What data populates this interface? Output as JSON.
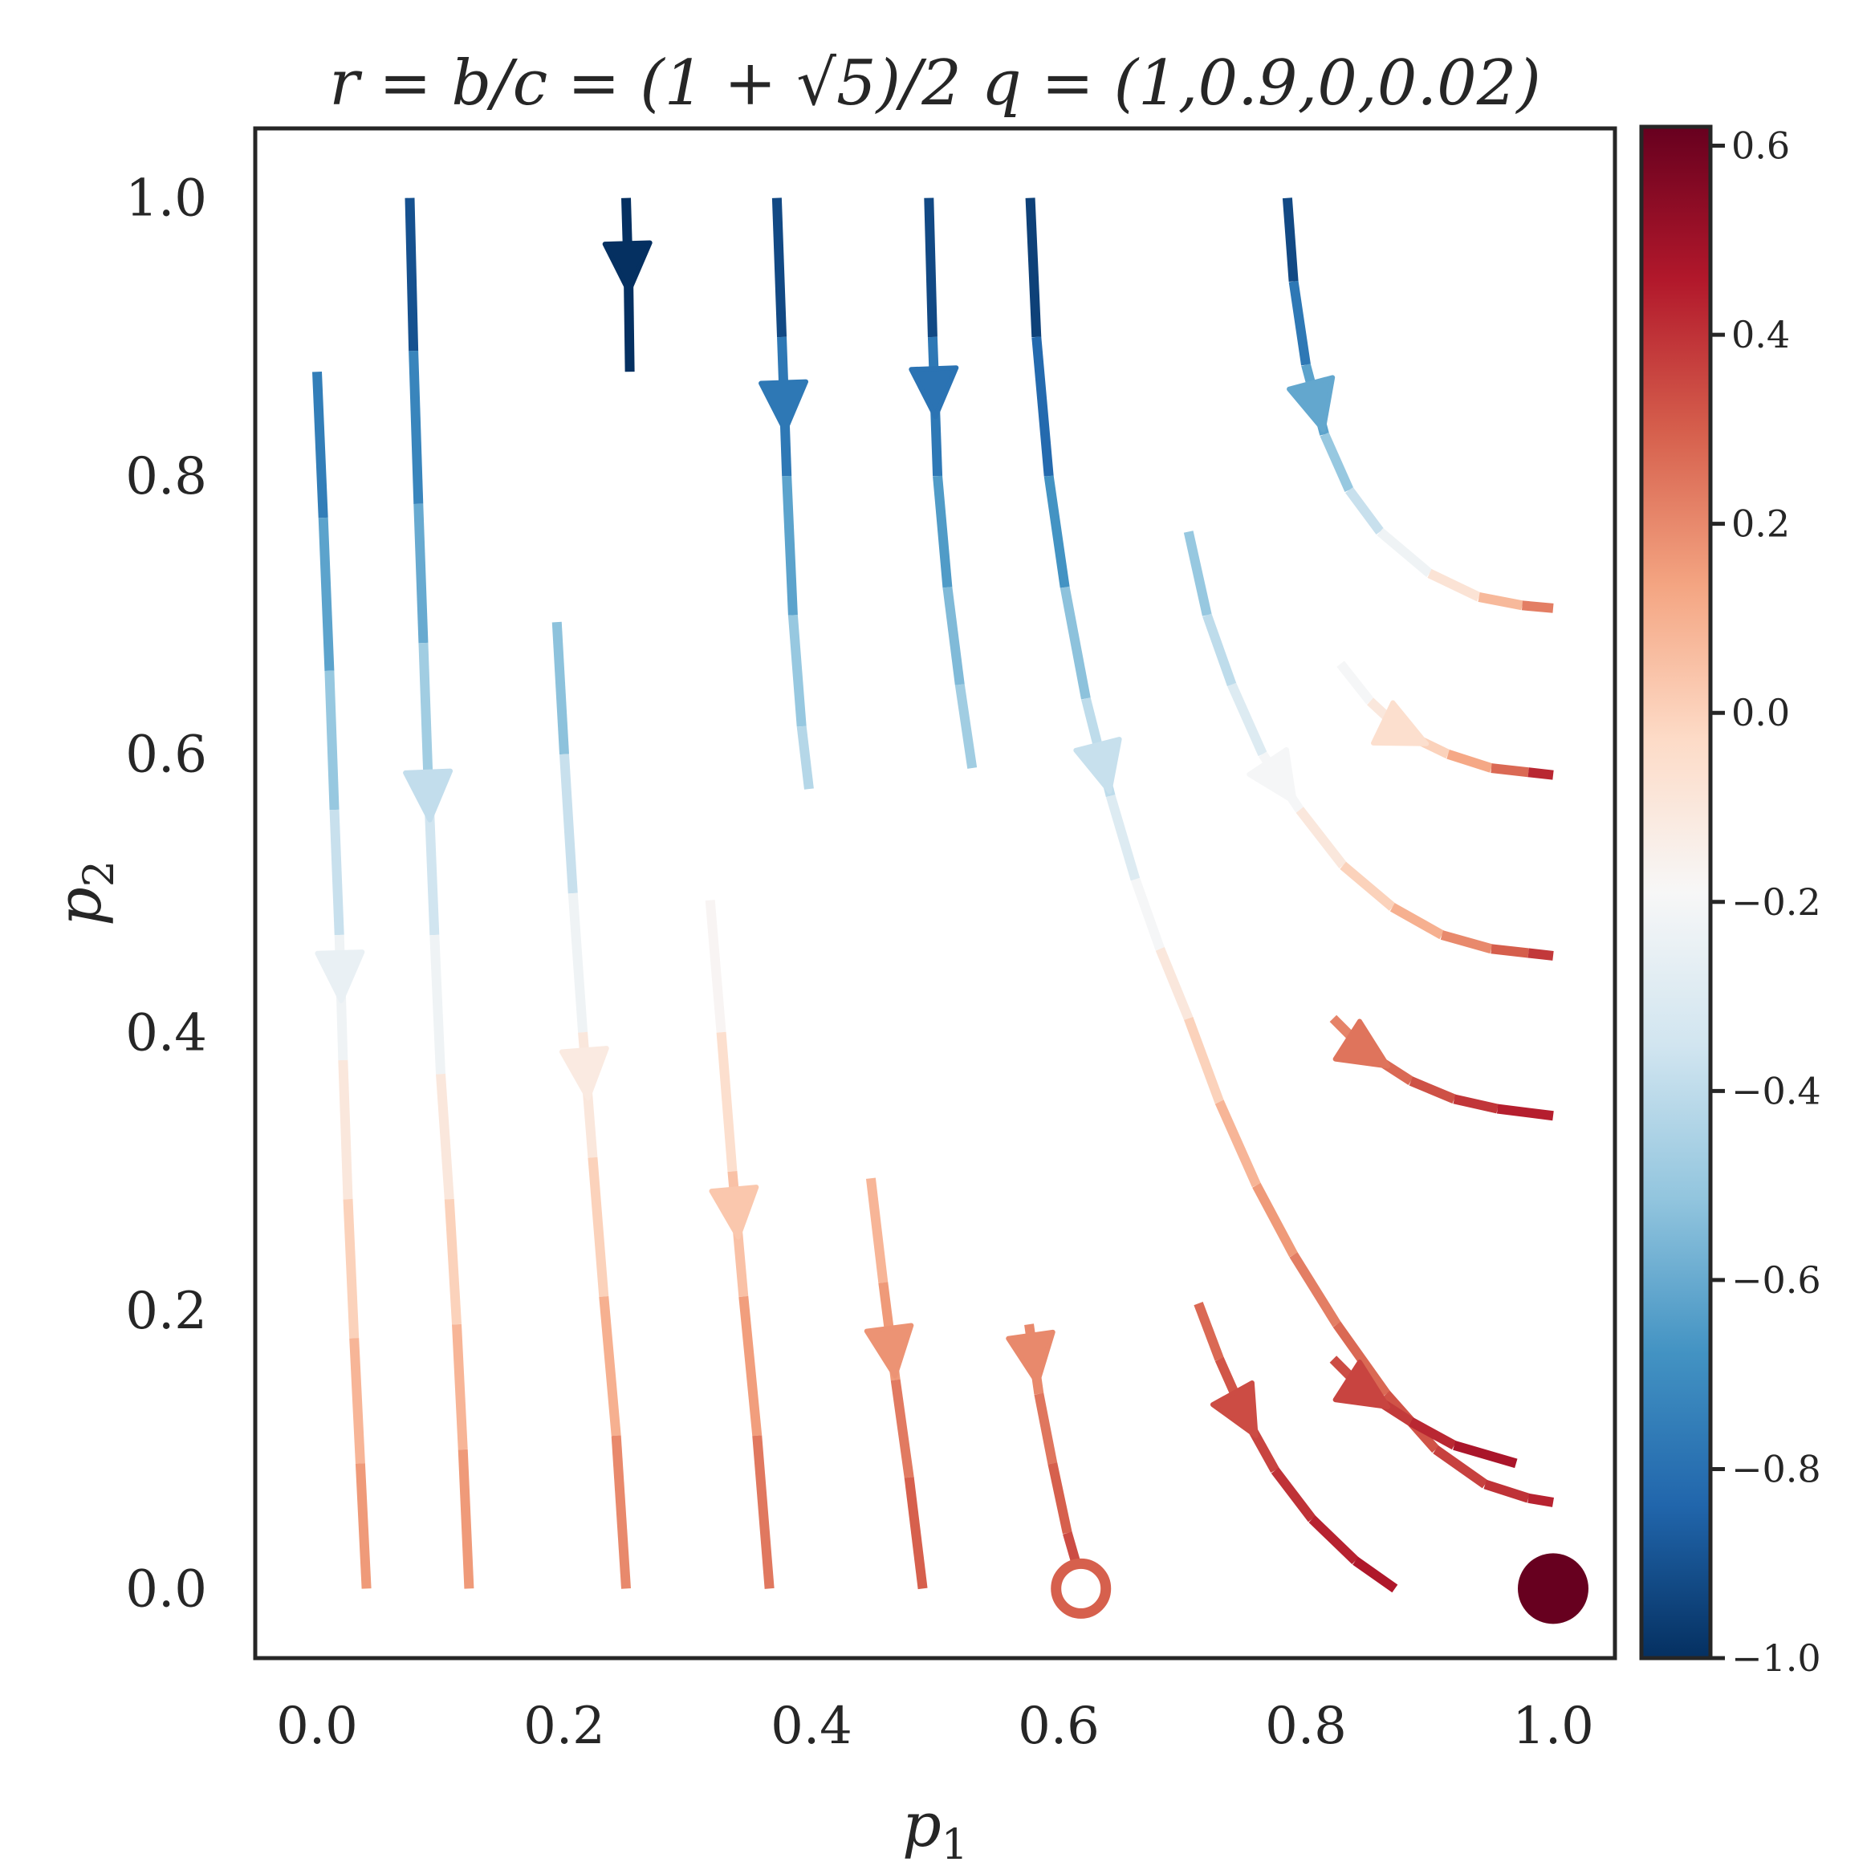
{
  "chart_data": {
    "type": "streamplot",
    "title": "r = b/c = (1 + √5)/2 q = (1,0.9,0,0.02)",
    "xlabel": "p",
    "xlabel_sub": "1",
    "ylabel": "p",
    "ylabel_sub": "2",
    "xlim": [
      -0.05,
      1.05
    ],
    "ylim": [
      -0.05,
      1.05
    ],
    "xticks": [
      "0.0",
      "0.2",
      "0.4",
      "0.6",
      "0.8",
      "1.0"
    ],
    "xtick_values": [
      0,
      0.2,
      0.4,
      0.6,
      0.8,
      1.0
    ],
    "yticks": [
      "0.0",
      "0.2",
      "0.4",
      "0.6",
      "0.8",
      "1.0"
    ],
    "ytick_values": [
      0,
      0.2,
      0.4,
      0.6,
      0.8,
      1.0
    ],
    "grid": false,
    "colormap": "RdBu_r",
    "colorbar": {
      "range": [
        -1.0,
        0.62
      ],
      "ticks": [
        "−1.0",
        "−0.8",
        "−0.6",
        "−0.4",
        "−0.2",
        "0.0",
        "0.2",
        "0.4",
        "0.6"
      ],
      "tick_values": [
        -1.0,
        -0.8,
        -0.6,
        -0.4,
        -0.2,
        0.0,
        0.2,
        0.4,
        0.6
      ],
      "colors": [
        "#053061",
        "#2166ac",
        "#4393c3",
        "#92c5de",
        "#d1e5f0",
        "#f7f7f7",
        "#fddbc7",
        "#f4a582",
        "#d6604d",
        "#b2182b",
        "#67001f"
      ]
    },
    "streamlines": [
      {
        "points": [
          [
            0.0,
            0.875
          ],
          [
            0.005,
            0.77
          ],
          [
            0.01,
            0.66
          ],
          [
            0.014,
            0.56
          ],
          [
            0.018,
            0.47
          ],
          [
            0.021,
            0.38
          ],
          [
            0.025,
            0.28
          ],
          [
            0.03,
            0.18
          ],
          [
            0.035,
            0.09
          ],
          [
            0.04,
            0.0
          ]
        ],
        "values": [
          -0.8,
          -0.7,
          -0.55,
          -0.45,
          -0.3,
          -0.15,
          -0.05,
          0.05,
          0.12,
          0.2
        ],
        "arrows": [
          0.44
        ]
      },
      {
        "points": [
          [
            0.075,
            1.0
          ],
          [
            0.078,
            0.89
          ],
          [
            0.082,
            0.78
          ],
          [
            0.086,
            0.68
          ],
          [
            0.09,
            0.58
          ],
          [
            0.095,
            0.47
          ],
          [
            0.1,
            0.37
          ],
          [
            0.107,
            0.28
          ],
          [
            0.113,
            0.19
          ],
          [
            0.118,
            0.1
          ],
          [
            0.123,
            0.0
          ]
        ],
        "values": [
          -1.0,
          -0.8,
          -0.65,
          -0.55,
          -0.4,
          -0.3,
          -0.15,
          -0.05,
          0.05,
          0.12,
          0.2
        ],
        "arrows": [
          0.57
        ]
      },
      {
        "points": [
          [
            0.194,
            0.695
          ],
          [
            0.2,
            0.6
          ],
          [
            0.207,
            0.5
          ],
          [
            0.215,
            0.4
          ],
          [
            0.223,
            0.31
          ],
          [
            0.232,
            0.21
          ],
          [
            0.242,
            0.11
          ],
          [
            0.25,
            0.0
          ]
        ],
        "values": [
          -0.6,
          -0.45,
          -0.3,
          -0.15,
          -0.05,
          0.05,
          0.15,
          0.25
        ],
        "arrows": [
          0.37
        ]
      },
      {
        "points": [
          [
            0.25,
            1.0
          ],
          [
            0.252,
            0.94
          ],
          [
            0.253,
            0.875
          ]
        ],
        "values": [
          -1.0,
          -1.0,
          -1.0
        ],
        "arrows": [
          0.95
        ]
      },
      {
        "points": [
          [
            0.318,
            0.495
          ],
          [
            0.327,
            0.4
          ],
          [
            0.336,
            0.3
          ],
          [
            0.345,
            0.21
          ],
          [
            0.356,
            0.11
          ],
          [
            0.366,
            0.0
          ]
        ],
        "values": [
          -0.25,
          -0.1,
          0.0,
          0.1,
          0.2,
          0.28
        ],
        "arrows": [
          0.27
        ]
      },
      {
        "points": [
          [
            0.372,
            1.0
          ],
          [
            0.376,
            0.9
          ],
          [
            0.38,
            0.8
          ],
          [
            0.385,
            0.7
          ],
          [
            0.392,
            0.62
          ],
          [
            0.398,
            0.575
          ]
        ],
        "values": [
          -1.0,
          -0.85,
          -0.7,
          -0.55,
          -0.45,
          -0.4
        ],
        "arrows": [
          0.85
        ]
      },
      {
        "points": [
          [
            0.448,
            0.295
          ],
          [
            0.458,
            0.22
          ],
          [
            0.468,
            0.15
          ],
          [
            0.479,
            0.08
          ],
          [
            0.49,
            0.0
          ]
        ],
        "values": [
          0.05,
          0.12,
          0.2,
          0.27,
          0.32
        ],
        "arrows": [
          0.17
        ]
      },
      {
        "points": [
          [
            0.495,
            1.0
          ],
          [
            0.498,
            0.9
          ],
          [
            0.502,
            0.8
          ],
          [
            0.51,
            0.72
          ],
          [
            0.52,
            0.65
          ],
          [
            0.53,
            0.59
          ]
        ],
        "values": [
          -1.0,
          -0.85,
          -0.7,
          -0.6,
          -0.5,
          -0.45
        ],
        "arrows": [
          0.86
        ]
      },
      {
        "points": [
          [
            0.576,
            0.19
          ],
          [
            0.584,
            0.14
          ],
          [
            0.595,
            0.09
          ],
          [
            0.607,
            0.04
          ],
          [
            0.62,
            0.0
          ]
        ],
        "values": [
          0.18,
          0.22,
          0.27,
          0.32,
          0.36
        ],
        "arrows": [
          0.165
        ]
      },
      {
        "points": [
          [
            0.577,
            1.0
          ],
          [
            0.582,
            0.9
          ],
          [
            0.592,
            0.8
          ],
          [
            0.605,
            0.72
          ],
          [
            0.622,
            0.64
          ],
          [
            0.642,
            0.57
          ],
          [
            0.662,
            0.51
          ],
          [
            0.682,
            0.46
          ],
          [
            0.705,
            0.41
          ],
          [
            0.73,
            0.35
          ],
          [
            0.76,
            0.29
          ],
          [
            0.79,
            0.24
          ],
          [
            0.825,
            0.19
          ],
          [
            0.865,
            0.14
          ],
          [
            0.905,
            0.1
          ],
          [
            0.945,
            0.075
          ],
          [
            0.98,
            0.065
          ],
          [
            1.0,
            0.062
          ]
        ],
        "values": [
          -1.0,
          -0.9,
          -0.75,
          -0.6,
          -0.45,
          -0.35,
          -0.25,
          -0.15,
          -0.05,
          0.05,
          0.12,
          0.2,
          0.25,
          0.3,
          0.35,
          0.38,
          0.42,
          0.45
        ],
        "arrows": [
          0.59
        ]
      },
      {
        "points": [
          [
            0.705,
            0.76
          ],
          [
            0.72,
            0.7
          ],
          [
            0.74,
            0.65
          ],
          [
            0.765,
            0.6
          ],
          [
            0.795,
            0.56
          ],
          [
            0.83,
            0.52
          ],
          [
            0.87,
            0.49
          ],
          [
            0.91,
            0.47
          ],
          [
            0.95,
            0.46
          ],
          [
            0.98,
            0.457
          ],
          [
            1.0,
            0.455
          ]
        ],
        "values": [
          -0.55,
          -0.45,
          -0.35,
          -0.25,
          -0.15,
          -0.05,
          0.05,
          0.15,
          0.25,
          0.35,
          0.42
        ],
        "arrows": [
          0.58
        ]
      },
      {
        "points": [
          [
            0.713,
            0.205
          ],
          [
            0.73,
            0.165
          ],
          [
            0.75,
            0.125
          ],
          [
            0.775,
            0.085
          ],
          [
            0.805,
            0.05
          ],
          [
            0.84,
            0.02
          ],
          [
            0.872,
            0.0
          ]
        ],
        "values": [
          0.25,
          0.3,
          0.34,
          0.38,
          0.42,
          0.45,
          0.48
        ],
        "arrows": [
          0.125
        ]
      },
      {
        "points": [
          [
            0.785,
            1.0
          ],
          [
            0.79,
            0.94
          ],
          [
            0.8,
            0.88
          ],
          [
            0.815,
            0.83
          ],
          [
            0.835,
            0.79
          ],
          [
            0.86,
            0.76
          ],
          [
            0.9,
            0.73
          ],
          [
            0.94,
            0.713
          ],
          [
            0.975,
            0.707
          ],
          [
            1.0,
            0.705
          ]
        ],
        "values": [
          -1.0,
          -0.85,
          -0.7,
          -0.55,
          -0.45,
          -0.3,
          -0.15,
          0.0,
          0.15,
          0.3
        ],
        "arrows": [
          0.85
        ]
      },
      {
        "points": [
          [
            0.828,
            0.665
          ],
          [
            0.852,
            0.638
          ],
          [
            0.88,
            0.615
          ],
          [
            0.915,
            0.6
          ],
          [
            0.95,
            0.59
          ],
          [
            0.98,
            0.587
          ],
          [
            1.0,
            0.585
          ]
        ],
        "values": [
          -0.25,
          -0.15,
          -0.05,
          0.05,
          0.2,
          0.35,
          0.5
        ],
        "arrows": [
          0.615
        ]
      },
      {
        "points": [
          [
            0.822,
            0.41
          ],
          [
            0.85,
            0.385
          ],
          [
            0.885,
            0.365
          ],
          [
            0.92,
            0.352
          ],
          [
            0.955,
            0.345
          ],
          [
            1.0,
            0.34
          ]
        ],
        "values": [
          0.18,
          0.25,
          0.3,
          0.36,
          0.42,
          0.47
        ],
        "arrows": [
          0.385
        ]
      },
      {
        "points": [
          [
            0.822,
            0.165
          ],
          [
            0.85,
            0.14
          ],
          [
            0.885,
            0.12
          ],
          [
            0.92,
            0.103
          ],
          [
            0.97,
            0.09
          ]
        ],
        "values": [
          0.32,
          0.36,
          0.4,
          0.45,
          0.5
        ],
        "arrows": [
          0.14
        ]
      }
    ],
    "fixed_points": [
      {
        "x": 0.618,
        "y": 0.0,
        "marker": "hollow circle",
        "color": "#d6604d"
      },
      {
        "x": 1.0,
        "y": 0.0,
        "marker": "filled circle",
        "color": "#67001f"
      }
    ]
  }
}
